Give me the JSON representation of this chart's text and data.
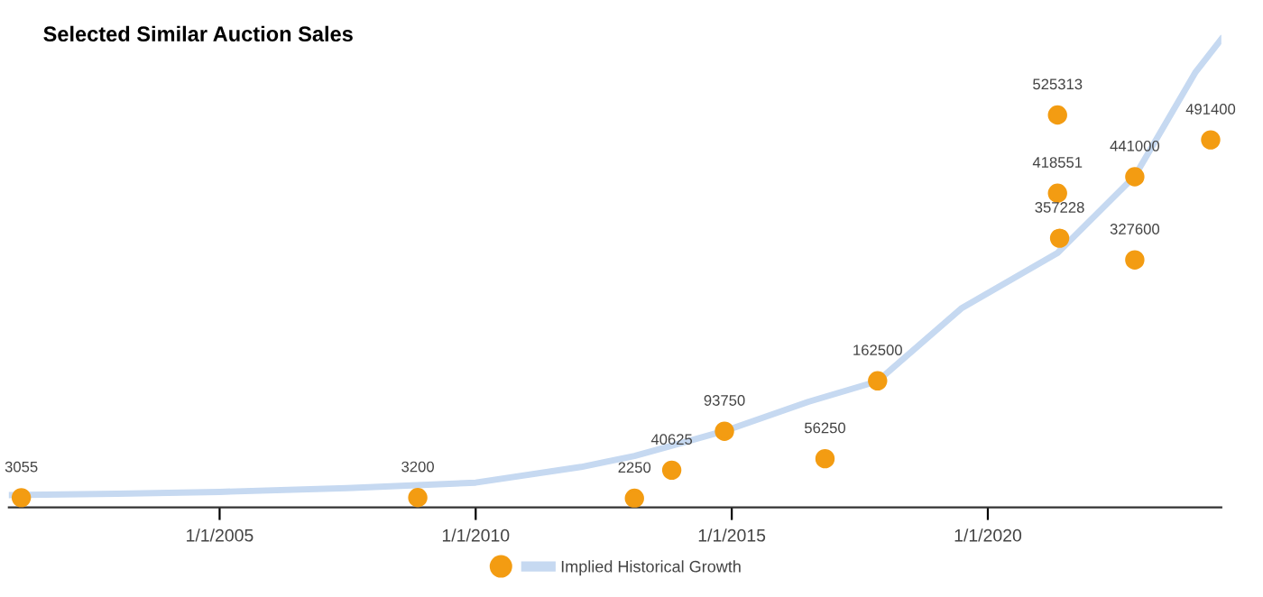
{
  "chart_data": {
    "type": "scatter",
    "title": "Selected Similar Auction Sales",
    "series": [
      {
        "color": "#f39c12",
        "marker": "circle",
        "data_labels": true,
        "x": [
          "2001-02-17",
          "2008-11-14",
          "2013-02-06",
          "2013-10-30",
          "2014-11-10",
          "2016-10-27",
          "2017-11-06",
          "2021-05-12",
          "2021-05-12",
          "2021-05-27",
          "2022-11-14",
          "2022-11-14",
          "2024-05-08"
        ],
        "values": [
          3055,
          3200,
          2250,
          40625,
          93750,
          56250,
          162500,
          525313,
          418551,
          357228,
          441000,
          327600,
          491400
        ]
      },
      {
        "type": "line",
        "name": "Implied Historical Growth",
        "color": "#c6d9f1",
        "marker": "none",
        "line_style": "solid",
        "x": [
          "2000-11-20",
          "2003-01-01",
          "2005-01-01",
          "2007-07-01",
          "2010-01-01",
          "2012-01-22",
          "2013-02-06",
          "2014-11-10",
          "2016-07-01",
          "2017-11-06",
          "2019-07-01",
          "2021-05-12",
          "2022-11-14",
          "2024-01-22",
          "2024-07-23"
        ],
        "values": [
          6500,
          8500,
          11000,
          16000,
          23600,
          45000,
          60000,
          94000,
          134000,
          162000,
          262000,
          337000,
          442000,
          584000,
          629000
        ]
      }
    ],
    "xlim": [
      "2000-11-20",
      "2024-07-23"
    ],
    "xticks": [
      {
        "value": "2005-01-01",
        "label": "1/1/2005"
      },
      {
        "value": "2010-01-01",
        "label": "1/1/2010"
      },
      {
        "value": "2015-01-01",
        "label": "1/1/2015"
      },
      {
        "value": "2020-01-01",
        "label": "1/1/2020"
      }
    ],
    "tick_labels": "x",
    "grid": false,
    "legend": "bottom"
  }
}
